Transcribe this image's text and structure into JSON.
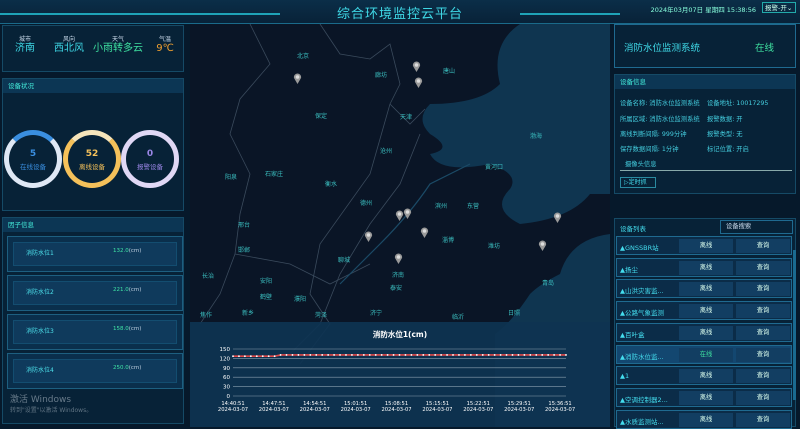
{
  "header": {
    "title": "综合环境监控云平台",
    "datetime": "2024年03月07日 星期四 15:38:56",
    "alarm_select": "报警-开"
  },
  "weather": {
    "items": [
      {
        "label": "城市",
        "value": "济南"
      },
      {
        "label": "风向",
        "value": "西北风"
      },
      {
        "label": "天气",
        "value": "小雨转多云"
      },
      {
        "label": "气温",
        "value": "9℃"
      }
    ]
  },
  "device_status": {
    "title": "设备状况",
    "rings": [
      {
        "value": "5",
        "label": "在线设备",
        "color": "#3a8fe0"
      },
      {
        "value": "52",
        "label": "离线设备",
        "color": "#f5c15a"
      },
      {
        "value": "0",
        "label": "报警设备",
        "color": "#9a86e6"
      }
    ]
  },
  "factors": {
    "title": "因子信息",
    "items": [
      {
        "name": "消防水位1",
        "value": "132.0",
        "unit": "(cm)"
      },
      {
        "name": "消防水位2",
        "value": "221.0",
        "unit": "(cm)"
      },
      {
        "name": "消防水位3",
        "value": "158.0",
        "unit": "(cm)"
      },
      {
        "name": "消防水位4",
        "value": "250.0",
        "unit": "(cm)"
      }
    ]
  },
  "map": {
    "cities": [
      "北京",
      "廊坊",
      "唐山",
      "保定",
      "天津",
      "沧州",
      "渤海",
      "黄河口",
      "石家庄",
      "衡水",
      "阳泉",
      "德州",
      "滨州",
      "东营",
      "邢台",
      "淄博",
      "潍坊",
      "邯郸",
      "聊城",
      "济南",
      "泰安",
      "长治",
      "安阳",
      "青岛",
      "鹤壁",
      "濮阳",
      "济宁",
      "日照",
      "新乡",
      "菏泽",
      "临沂",
      "焦作"
    ]
  },
  "chart_data": {
    "type": "line",
    "title": "消防水位1(cm)",
    "ylim": [
      0,
      150
    ],
    "yticks": [
      0,
      30,
      60,
      90,
      120,
      150
    ],
    "grid": true,
    "xticks": [
      "14:40:51\n2024-03-07",
      "14:47:51\n2024-03-07",
      "14:54:51\n2024-03-07",
      "15:01:51\n2024-03-07",
      "15:08:51\n2024-03-07",
      "15:15:51\n2024-03-07",
      "15:22:51\n2024-03-07",
      "15:29:51\n2024-03-07",
      "15:36:51\n2024-03-07"
    ],
    "values": [
      127,
      127,
      127,
      127,
      127,
      127,
      127,
      127,
      131,
      131,
      131,
      131,
      131,
      131,
      131,
      131,
      131,
      131,
      131,
      131,
      131,
      131,
      131,
      131,
      131,
      131,
      131,
      131,
      131,
      131,
      131,
      131,
      131,
      131,
      131,
      131,
      131,
      131,
      131,
      131,
      131,
      131,
      131,
      131,
      131,
      131,
      131,
      131,
      131,
      131,
      131,
      131,
      131,
      131,
      131,
      131,
      131
    ],
    "line_color": "#e04848"
  },
  "system": {
    "name": "消防水位监测系统",
    "status": "在线"
  },
  "device_info": {
    "title": "设备信息",
    "fields": [
      "设备名称: 消防水位监测系统",
      "设备地址: 10017295",
      "所属区域: 消防水位监测系统",
      "报警数据: 开",
      "离线判断间隔: 999分钟",
      "报警类型: 无",
      "保存数据间隔: 1分钟",
      "标记位置: 开启"
    ],
    "camera": "摄像头信息",
    "playback": "定时抓"
  },
  "device_list": {
    "title": "设备列表",
    "search_placeholder": "设备搜索",
    "rows": [
      {
        "name": "GNSSBR站",
        "status": "离线"
      },
      {
        "name": "扬尘",
        "status": "离线"
      },
      {
        "name": "山洪灾害监...",
        "status": "离线"
      },
      {
        "name": "公路气象监测",
        "status": "离线"
      },
      {
        "name": "百叶盒",
        "status": "离线"
      },
      {
        "name": "消防水位监...",
        "status": "在线"
      },
      {
        "name": "1",
        "status": "离线"
      },
      {
        "name": "空调控制器2...",
        "status": "离线"
      },
      {
        "name": "水质监测站...",
        "status": "离线"
      }
    ],
    "query_label": "查询"
  },
  "watermark": {
    "line1": "激活 Windows",
    "line2": "转到\"设置\"以激活 Windows。"
  }
}
